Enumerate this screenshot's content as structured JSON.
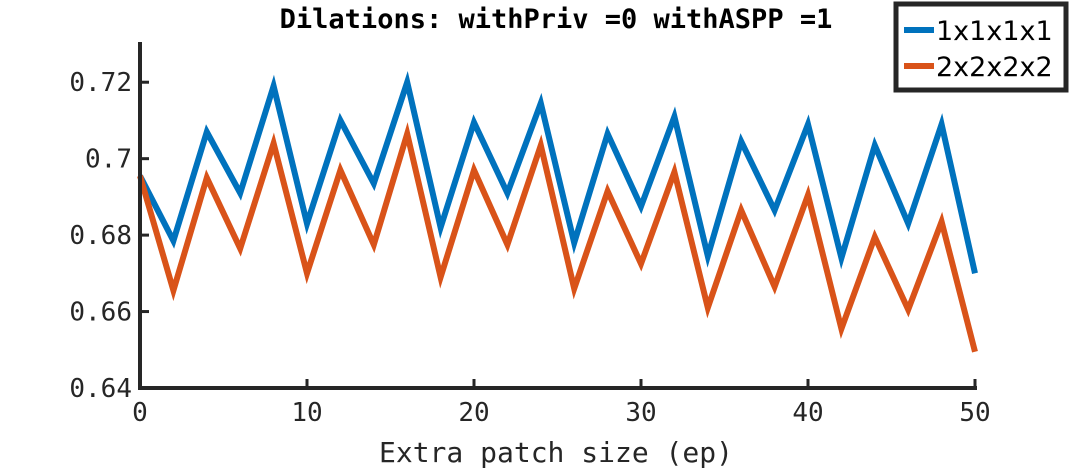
{
  "chart_data": {
    "type": "line",
    "title": "Dilations: withPriv =0 withASPP =1",
    "xlabel": "Extra patch size (ep)",
    "ylabel": "",
    "xlim": [
      0,
      50
    ],
    "ylim": [
      0.64,
      0.73
    ],
    "xticks": [
      0,
      10,
      20,
      30,
      40,
      50
    ],
    "xtick_labels": [
      "0",
      "10",
      "20",
      "30",
      "40",
      "50"
    ],
    "yticks": [
      0.64,
      0.66,
      0.68,
      0.7,
      0.72
    ],
    "ytick_labels": [
      "0.64",
      "0.66",
      "0.68",
      "0.7",
      "0.72"
    ],
    "grid": false,
    "legend_position": "top-right",
    "x": [
      0,
      2,
      4,
      6,
      8,
      10,
      12,
      14,
      16,
      18,
      20,
      22,
      24,
      26,
      28,
      30,
      32,
      34,
      36,
      38,
      40,
      42,
      44,
      46,
      48,
      50
    ],
    "series": [
      {
        "name": "1x1x1x1",
        "color": "#0072BD",
        "values": [
          0.6955,
          0.6785,
          0.707,
          0.691,
          0.719,
          0.683,
          0.71,
          0.6935,
          0.72,
          0.682,
          0.7095,
          0.691,
          0.7145,
          0.678,
          0.7065,
          0.6875,
          0.711,
          0.6745,
          0.7045,
          0.6865,
          0.709,
          0.674,
          0.7035,
          0.683,
          0.709,
          0.67
        ]
      },
      {
        "name": "2x2x2x2",
        "color": "#D95319",
        "values": [
          0.6955,
          0.6655,
          0.695,
          0.6765,
          0.704,
          0.67,
          0.697,
          0.6775,
          0.7065,
          0.669,
          0.697,
          0.6775,
          0.7035,
          0.666,
          0.6915,
          0.6725,
          0.6965,
          0.661,
          0.6865,
          0.6665,
          0.6905,
          0.6555,
          0.6795,
          0.6605,
          0.6835,
          0.6495
        ]
      }
    ]
  }
}
